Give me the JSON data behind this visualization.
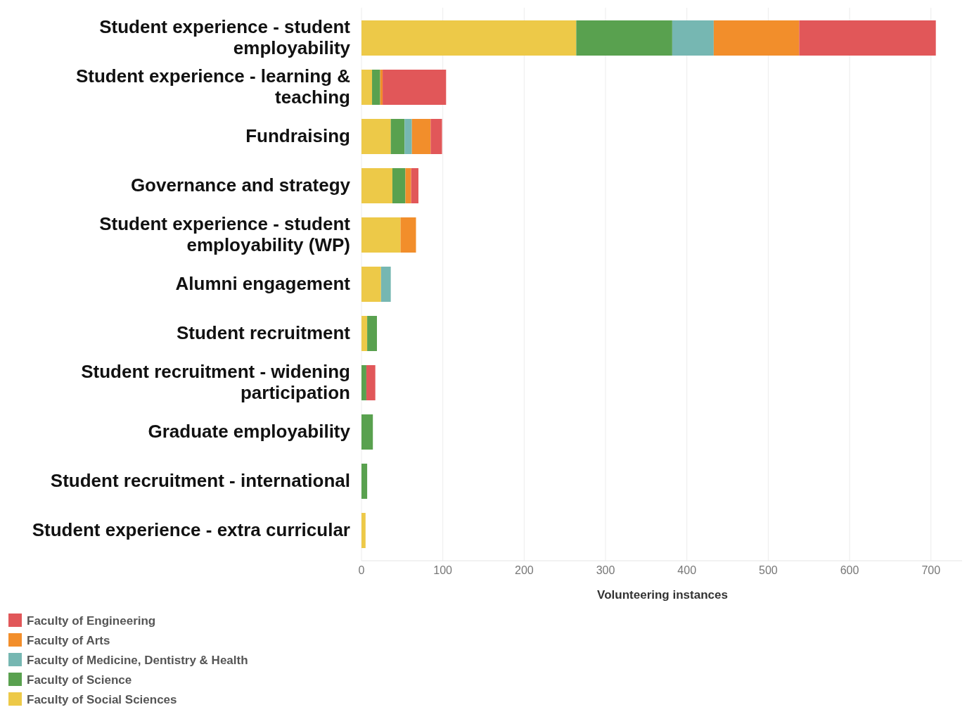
{
  "chart_data": {
    "type": "bar",
    "orientation": "horizontal",
    "stacked": true,
    "xlabel": "Volunteering instances",
    "categories": [
      "Student experience - student employability",
      "Student experience - learning & teaching",
      "Fundraising",
      "Governance and strategy",
      "Student experience - student employability (WP)",
      "Alumni engagement",
      "Student recruitment",
      "Student recruitment - widening participation",
      "Graduate employability",
      "Student recruitment - international",
      "Student experience - extra curricular"
    ],
    "series": [
      {
        "name": "Faculty of Social Sciences",
        "color": "#edc948",
        "values": [
          264,
          13,
          36,
          38,
          48,
          24,
          7,
          null,
          null,
          null,
          5
        ]
      },
      {
        "name": "Faculty of Science",
        "color": "#59a14f",
        "values": [
          118,
          10,
          17,
          16,
          null,
          null,
          12,
          6,
          14,
          7,
          null
        ]
      },
      {
        "name": "Faculty of Medicine, Dentistry & Health",
        "color": "#76b7b2",
        "values": [
          51,
          null,
          9,
          null,
          null,
          12,
          null,
          null,
          null,
          null,
          null
        ]
      },
      {
        "name": "Faculty of Arts",
        "color": "#f28e2b",
        "values": [
          105,
          3,
          23,
          7,
          19,
          null,
          null,
          null,
          null,
          null,
          null
        ]
      },
      {
        "name": "Faculty of Engineering",
        "color": "#e15759",
        "values": [
          168,
          78,
          14,
          9,
          null,
          null,
          null,
          11,
          null,
          null,
          null
        ]
      }
    ],
    "xlim": [
      0,
      740
    ],
    "xticks": [
      0,
      100,
      200,
      300,
      400,
      500,
      600,
      700
    ],
    "grid": "x",
    "legend": "bottom"
  }
}
